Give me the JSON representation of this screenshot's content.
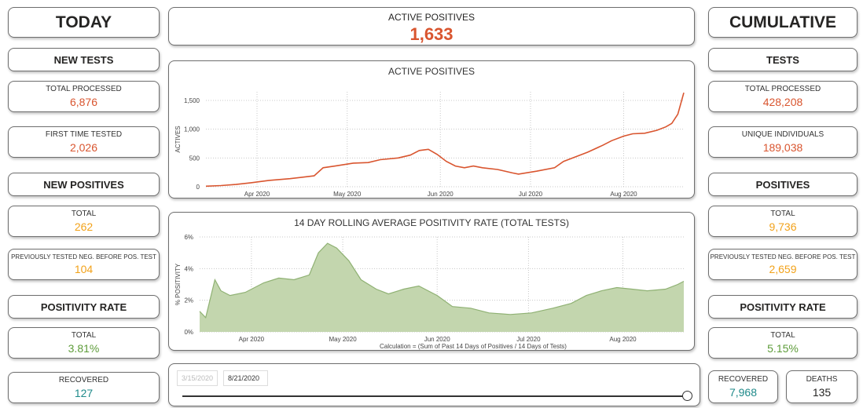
{
  "today": {
    "title": "TODAY",
    "new_tests": {
      "header": "NEW TESTS",
      "total_processed": {
        "label": "TOTAL PROCESSED",
        "value": "6,876"
      },
      "first_time": {
        "label": "FIRST TIME TESTED",
        "value": "2,026"
      }
    },
    "new_positives": {
      "header": "NEW POSITIVES",
      "total": {
        "label": "TOTAL",
        "value": "262"
      },
      "prev_neg": {
        "label": "PREVIOUSLY TESTED NEG. BEFORE POS. TEST",
        "value": "104"
      }
    },
    "positivity": {
      "header": "POSITIVITY RATE",
      "total": {
        "label": "TOTAL",
        "value": "3.81%"
      }
    },
    "recovered": {
      "label": "RECOVERED",
      "value": "127"
    }
  },
  "active": {
    "label": "ACTIVE POSITIVES",
    "value": "1,633"
  },
  "cumulative": {
    "title": "CUMULATIVE",
    "tests": {
      "header": "TESTS",
      "total_processed": {
        "label": "TOTAL PROCESSED",
        "value": "428,208"
      },
      "unique": {
        "label": "UNIQUE INDIVIDUALS",
        "value": "189,038"
      }
    },
    "positives": {
      "header": "POSITIVES",
      "total": {
        "label": "TOTAL",
        "value": "9,736"
      },
      "prev_neg": {
        "label": "PREVIOUSLY TESTED NEG. BEFORE POS. TEST",
        "value": "2,659"
      }
    },
    "positivity": {
      "header": "POSITIVITY RATE",
      "total": {
        "label": "TOTAL",
        "value": "5.15%"
      }
    },
    "recovered": {
      "label": "RECOVERED",
      "value": "7,968"
    },
    "deaths": {
      "label": "DEATHS",
      "value": "135"
    }
  },
  "slider": {
    "start": "3/15/2020",
    "end": "8/21/2020"
  },
  "colors": {
    "red": "#d9552f",
    "orange": "#f2a21a",
    "green": "#5e9c3a",
    "teal": "#1f8a8a",
    "area_fill": "#c3d6ae",
    "area_line": "#8fb173"
  },
  "chart_data": [
    {
      "type": "line",
      "title": "ACTIVE POSITIVES",
      "ylabel": "ACTIVES",
      "xlabel": "",
      "x_ticks": [
        "Apr 2020",
        "May 2020",
        "Jun 2020",
        "Jul 2020",
        "Aug 2020"
      ],
      "y_ticks": [
        "0",
        "500",
        "1,000",
        "1,500"
      ],
      "ylim": [
        0,
        1650
      ],
      "xlim": [
        "2020-03-15",
        "2020-08-21"
      ],
      "grid": true,
      "series": [
        {
          "color": "#d9552f",
          "points": [
            [
              "2020-03-15",
              10
            ],
            [
              "2020-03-20",
              20
            ],
            [
              "2020-03-25",
              40
            ],
            [
              "2020-03-30",
              70
            ],
            [
              "2020-04-05",
              110
            ],
            [
              "2020-04-12",
              140
            ],
            [
              "2020-04-20",
              190
            ],
            [
              "2020-04-23",
              330
            ],
            [
              "2020-04-27",
              360
            ],
            [
              "2020-05-03",
              410
            ],
            [
              "2020-05-08",
              420
            ],
            [
              "2020-05-12",
              470
            ],
            [
              "2020-05-18",
              500
            ],
            [
              "2020-05-22",
              550
            ],
            [
              "2020-05-25",
              630
            ],
            [
              "2020-05-28",
              650
            ],
            [
              "2020-05-31",
              560
            ],
            [
              "2020-06-03",
              440
            ],
            [
              "2020-06-06",
              360
            ],
            [
              "2020-06-09",
              330
            ],
            [
              "2020-06-12",
              360
            ],
            [
              "2020-06-15",
              330
            ],
            [
              "2020-06-20",
              300
            ],
            [
              "2020-06-25",
              240
            ],
            [
              "2020-06-27",
              220
            ],
            [
              "2020-07-03",
              270
            ],
            [
              "2020-07-09",
              330
            ],
            [
              "2020-07-12",
              440
            ],
            [
              "2020-07-16",
              520
            ],
            [
              "2020-07-20",
              600
            ],
            [
              "2020-07-25",
              720
            ],
            [
              "2020-07-28",
              800
            ],
            [
              "2020-08-01",
              880
            ],
            [
              "2020-08-04",
              920
            ],
            [
              "2020-08-08",
              930
            ],
            [
              "2020-08-12",
              980
            ],
            [
              "2020-08-15",
              1040
            ],
            [
              "2020-08-17",
              1100
            ],
            [
              "2020-08-19",
              1260
            ],
            [
              "2020-08-21",
              1633
            ]
          ]
        }
      ]
    },
    {
      "type": "area",
      "title": "14 DAY ROLLING AVERAGE POSITIVITY RATE (TOTAL TESTS)",
      "ylabel": "% POSITIVITY",
      "xlabel": "Calculation = (Sum of Past 14 Days of Positives / 14 Days of Tests)",
      "x_ticks": [
        "Apr 2020",
        "May 2020",
        "Jun 2020",
        "Jul 2020",
        "Aug 2020"
      ],
      "y_ticks": [
        "0%",
        "2%",
        "4%",
        "6%"
      ],
      "ylim": [
        0,
        6
      ],
      "xlim": [
        "2020-03-15",
        "2020-08-21"
      ],
      "grid": true,
      "series": [
        {
          "color": "#8fb173",
          "points": [
            [
              "2020-03-15",
              1.3
            ],
            [
              "2020-03-17",
              0.9
            ],
            [
              "2020-03-19",
              2.5
            ],
            [
              "2020-03-20",
              3.3
            ],
            [
              "2020-03-22",
              2.6
            ],
            [
              "2020-03-25",
              2.3
            ],
            [
              "2020-03-30",
              2.5
            ],
            [
              "2020-04-05",
              3.1
            ],
            [
              "2020-04-10",
              3.4
            ],
            [
              "2020-04-15",
              3.3
            ],
            [
              "2020-04-20",
              3.6
            ],
            [
              "2020-04-23",
              5.0
            ],
            [
              "2020-04-26",
              5.6
            ],
            [
              "2020-04-29",
              5.3
            ],
            [
              "2020-05-03",
              4.5
            ],
            [
              "2020-05-07",
              3.3
            ],
            [
              "2020-05-12",
              2.7
            ],
            [
              "2020-05-16",
              2.4
            ],
            [
              "2020-05-21",
              2.7
            ],
            [
              "2020-05-26",
              2.9
            ],
            [
              "2020-06-01",
              2.3
            ],
            [
              "2020-06-06",
              1.6
            ],
            [
              "2020-06-12",
              1.5
            ],
            [
              "2020-06-18",
              1.2
            ],
            [
              "2020-06-25",
              1.1
            ],
            [
              "2020-07-02",
              1.2
            ],
            [
              "2020-07-09",
              1.5
            ],
            [
              "2020-07-15",
              1.8
            ],
            [
              "2020-07-20",
              2.3
            ],
            [
              "2020-07-25",
              2.6
            ],
            [
              "2020-07-30",
              2.8
            ],
            [
              "2020-08-04",
              2.7
            ],
            [
              "2020-08-09",
              2.6
            ],
            [
              "2020-08-15",
              2.7
            ],
            [
              "2020-08-19",
              3.0
            ],
            [
              "2020-08-21",
              3.2
            ]
          ]
        }
      ]
    }
  ]
}
